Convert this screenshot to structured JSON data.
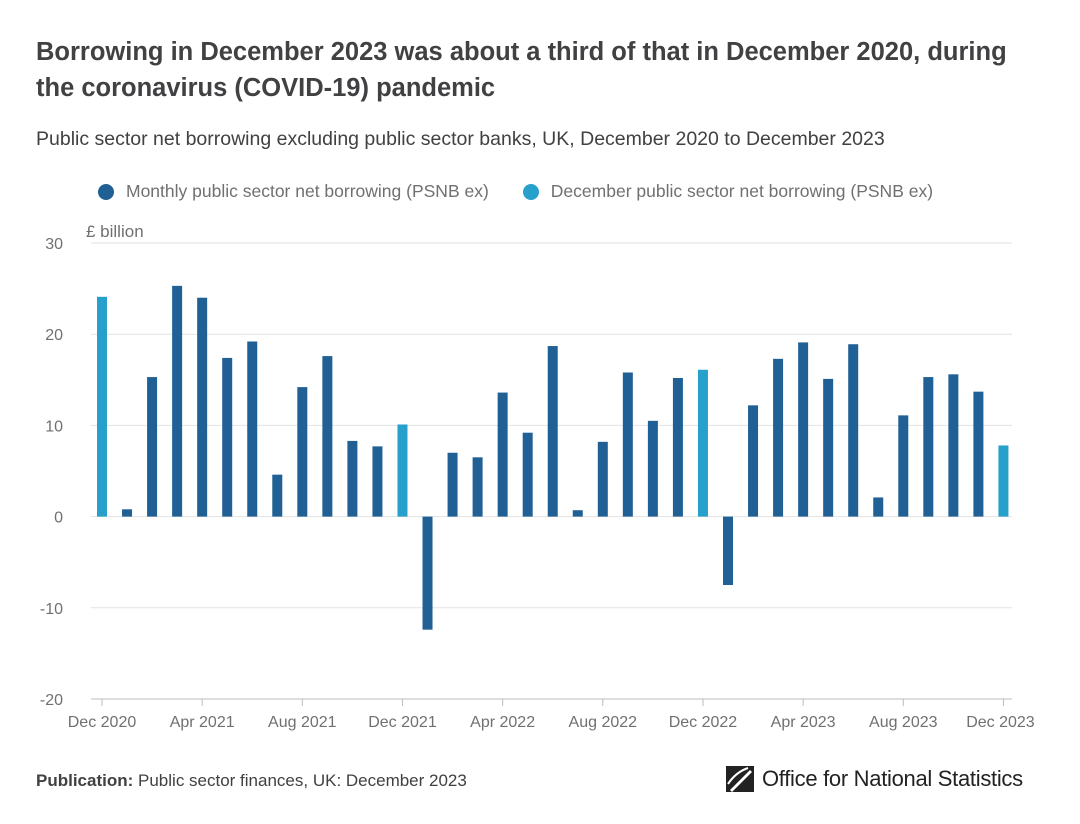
{
  "chart_data": {
    "type": "bar",
    "title": "Borrowing in December 2023 was about a third of that in December 2020, during the coronavirus (COVID-19) pandemic",
    "subtitle": "Public sector net borrowing excluding public sector banks, UK, December 2020 to December 2023",
    "ylabel": "£ billion",
    "ylim": [
      -20,
      30
    ],
    "yticks": [
      30,
      20,
      10,
      0,
      -10,
      -20
    ],
    "xtick_labels": [
      "Dec 2020",
      "Apr 2021",
      "Aug 2021",
      "Dec 2021",
      "Apr 2022",
      "Aug 2022",
      "Dec 2022",
      "Apr 2023",
      "Aug 2023",
      "Dec 2023"
    ],
    "xtick_indices": [
      0,
      4,
      8,
      12,
      16,
      20,
      24,
      28,
      32,
      36
    ],
    "legend": [
      {
        "name": "Monthly public sector net borrowing (PSNB ex)",
        "color": "#206095"
      },
      {
        "name": "December public sector net borrowing (PSNB ex)",
        "color": "#27a0cc"
      }
    ],
    "values": [
      24.1,
      0.8,
      15.3,
      25.3,
      24.0,
      17.4,
      19.2,
      4.6,
      14.2,
      17.6,
      8.3,
      7.7,
      10.1,
      -12.4,
      7.0,
      6.5,
      13.6,
      9.2,
      18.7,
      0.7,
      8.2,
      15.8,
      10.5,
      15.2,
      16.1,
      -7.5,
      12.2,
      17.3,
      19.1,
      15.1,
      18.9,
      2.1,
      11.1,
      15.3,
      15.6,
      13.7,
      7.8
    ],
    "highlight_indices": [
      0,
      12,
      24,
      36
    ]
  },
  "footer": {
    "publication_label": "Publication:",
    "publication_text": "Public sector finances, UK: December 2023"
  },
  "brand": {
    "name_part1": "Office for ",
    "name_part2": "National Statistics"
  }
}
